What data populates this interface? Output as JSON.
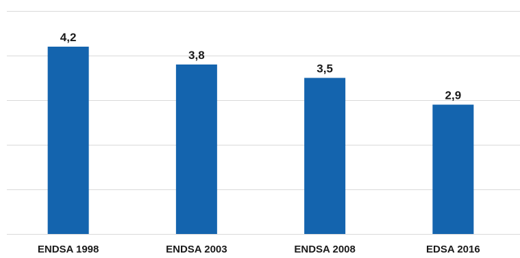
{
  "chart_data": {
    "type": "bar",
    "categories": [
      "ENDSA 1998",
      "ENDSA 2003",
      "ENDSA 2008",
      "EDSA 2016"
    ],
    "values": [
      4.2,
      3.8,
      3.5,
      2.9
    ],
    "value_labels": [
      "4,2",
      "3,8",
      "3,5",
      "2,9"
    ],
    "title": "",
    "xlabel": "",
    "ylabel": "",
    "ylim": [
      0,
      5
    ],
    "y_tick_step": 1,
    "grid": true,
    "legend": "none",
    "bar_color": "#1464ae",
    "grid_color": "#d9d9d9"
  }
}
